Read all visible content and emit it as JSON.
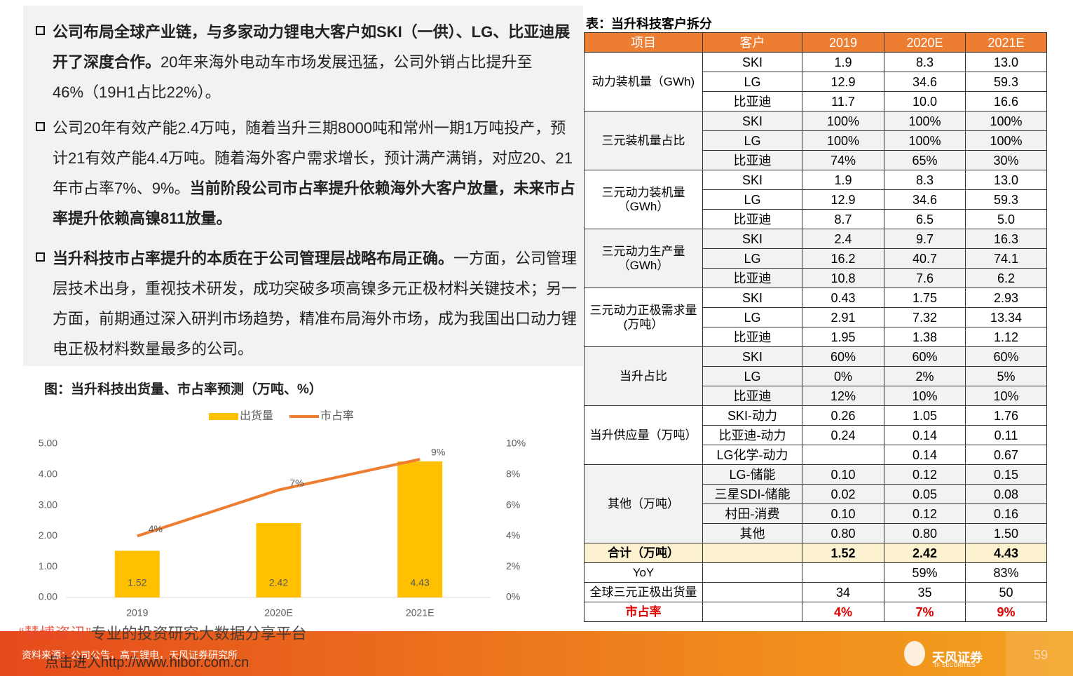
{
  "bullets": [
    {
      "segments": [
        {
          "text": "公司布局全球产业链，与多家动力锂电大客户如SKI（一供）、LG、比亚迪展开了深度合作。",
          "bold": true
        },
        {
          "text": "20年来海外电动车市场发展迅猛，公司外销占比提升至46%（19H1占比22%）。",
          "bold": false
        }
      ]
    },
    {
      "segments": [
        {
          "text": "公司20年有效产能2.4万吨，随着当升三期8000吨和常州一期1万吨投产，预计21有效产能4.4万吨。随着海外客户需求增长，预计满产满销，对应20、21年市占率7%、9%。",
          "bold": false
        },
        {
          "text": "当前阶段公司市占率提升依赖海外大客户放量，未来市占率提升依赖高镍811放量。",
          "bold": true
        }
      ]
    },
    {
      "segments": [
        {
          "text": "当升科技市占率提升的本质在于公司管理层战略布局正确。",
          "bold": true
        },
        {
          "text": "一方面，公司管理层技术出身，重视技术研发，成功突破多项高镍多元正极材料关键技术；另一方面，前期通过深入研判市场趋势，精准布局海外市场，成为我国出口动力锂电正极材料数量最多的公司。",
          "bold": false
        }
      ]
    }
  ],
  "chart": {
    "type": "bar",
    "title": "图：当升科技出货量、市占率预测（万吨、%）",
    "categories": [
      "2019",
      "2020E",
      "2021E"
    ],
    "series": [
      {
        "name": "出货量",
        "type": "bar",
        "color": "#ffc000",
        "values": [
          1.52,
          2.42,
          4.43
        ],
        "value_labels": [
          "1.52",
          "2.42",
          "4.43"
        ]
      },
      {
        "name": "市占率",
        "type": "line",
        "axis": "y2",
        "color": "#ed7d31",
        "values": [
          4,
          7,
          9
        ],
        "value_labels": [
          "4%",
          "7%",
          "9%"
        ]
      }
    ],
    "ylim": [
      0,
      5
    ],
    "yticks": [
      {
        "value": 0,
        "label": "0.00"
      },
      {
        "value": 1,
        "label": "1.00"
      },
      {
        "value": 2,
        "label": "2.00"
      },
      {
        "value": 3,
        "label": "3.00"
      },
      {
        "value": 4,
        "label": "4.00"
      },
      {
        "value": 5,
        "label": "5.00"
      }
    ],
    "y2lim": [
      0,
      10
    ],
    "y2ticks": [
      {
        "value": 0,
        "label": "0%"
      },
      {
        "value": 2,
        "label": "2%"
      },
      {
        "value": 4,
        "label": "4%"
      },
      {
        "value": 6,
        "label": "6%"
      },
      {
        "value": 8,
        "label": "8%"
      },
      {
        "value": 10,
        "label": "10%"
      }
    ],
    "legend": "top"
  },
  "table": {
    "title": "表：当升科技客户拆分",
    "header": [
      "项目",
      "客户",
      "2019",
      "2020E",
      "2021E"
    ],
    "groups": [
      {
        "item": "动力装机量（GWh)",
        "rows": [
          [
            "SKI",
            "1.9",
            "8.3",
            "13.0"
          ],
          [
            "LG",
            "12.9",
            "34.6",
            "59.3"
          ],
          [
            "比亚迪",
            "11.7",
            "10.0",
            "16.6"
          ]
        ]
      },
      {
        "item": "三元装机量占比",
        "fill": "#f2f2f2",
        "rows": [
          [
            "SKI",
            "100%",
            "100%",
            "100%"
          ],
          [
            "LG",
            "100%",
            "100%",
            "100%"
          ],
          [
            "比亚迪",
            "74%",
            "65%",
            "30%"
          ]
        ]
      },
      {
        "item": "三元动力装机量（GWh）",
        "rows": [
          [
            "SKI",
            "1.9",
            "8.3",
            "13.0"
          ],
          [
            "LG",
            "12.9",
            "34.6",
            "59.3"
          ],
          [
            "比亚迪",
            "8.7",
            "6.5",
            "5.0"
          ]
        ]
      },
      {
        "item": "三元动力生产量（GWh）",
        "fill": "#f2f2f2",
        "rows": [
          [
            "SKI",
            "2.4",
            "9.7",
            "16.3"
          ],
          [
            "LG",
            "16.2",
            "40.7",
            "74.1"
          ],
          [
            "比亚迪",
            "10.8",
            "7.6",
            "6.2"
          ]
        ]
      },
      {
        "item": "三元动力正极需求量(万吨）",
        "rows": [
          [
            "SKI",
            "0.43",
            "1.75",
            "2.93"
          ],
          [
            "LG",
            "2.91",
            "7.32",
            "13.34"
          ],
          [
            "比亚迪",
            "1.95",
            "1.38",
            "1.12"
          ]
        ]
      },
      {
        "item": "当升占比",
        "fill": "#f2f2f2",
        "rows": [
          [
            "SKI",
            "60%",
            "60%",
            "60%"
          ],
          [
            "LG",
            "0%",
            "2%",
            "5%"
          ],
          [
            "比亚迪",
            "12%",
            "10%",
            "10%"
          ]
        ]
      },
      {
        "item": "当升供应量（万吨）",
        "rows": [
          [
            "SKI-动力",
            "0.26",
            "1.05",
            "1.76"
          ],
          [
            "比亚迪-动力",
            "0.24",
            "0.14",
            "0.11"
          ],
          [
            "LG化学-动力",
            null,
            "0.14",
            "0.67"
          ]
        ]
      },
      {
        "item": "其他（万吨）",
        "fill": "#f2f2f2",
        "rows": [
          [
            "LG-储能",
            "0.10",
            "0.12",
            "0.15"
          ],
          [
            "三星SDI-储能",
            "0.02",
            "0.05",
            "0.08"
          ],
          [
            "村田-消费",
            "0.10",
            "0.12",
            "0.16"
          ],
          [
            "其他",
            "0.80",
            "0.80",
            "1.50"
          ]
        ]
      },
      {
        "item": "合计（万吨）",
        "fill": "#fdf2d0",
        "bold": true,
        "rows": [
          [
            null,
            "1.52",
            "2.42",
            "4.43"
          ]
        ]
      },
      {
        "item": "YoY",
        "rows": [
          [
            null,
            null,
            "59%",
            "83%"
          ]
        ]
      },
      {
        "item": "全球三元正极出货量",
        "rows": [
          [
            null,
            "34",
            "35",
            "50"
          ]
        ]
      },
      {
        "item": "市占率",
        "bold": true,
        "color": "#e00000",
        "rows": [
          [
            null,
            "4%",
            "7%",
            "9%"
          ]
        ]
      }
    ]
  },
  "footer": {
    "watermark_brand": "“慧博资讯”",
    "watermark_text": "专业的投资研究大数据分享平台",
    "link": "点击进入http://www.hibor.com.cn",
    "source": "资料来源：公司公告，高工锂电，天风证券研究所",
    "logo": "天风证券",
    "logo_en": "TF SECURITIES",
    "page": "59"
  }
}
